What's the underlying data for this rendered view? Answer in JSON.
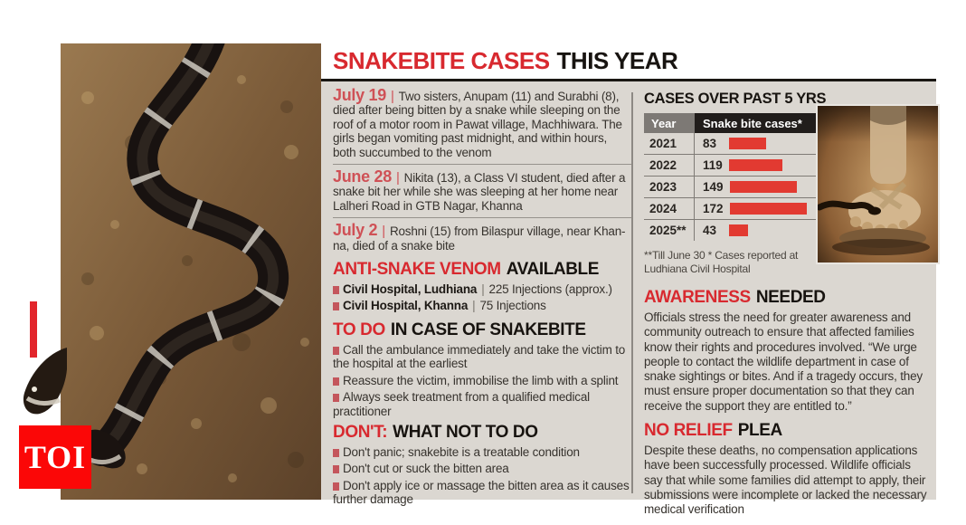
{
  "brand": {
    "logo_text": "TOI",
    "logo_color": "#fb0707"
  },
  "glyphs": {
    "pipe": "|"
  },
  "title": {
    "red": "SNAKEBITE CASES",
    "black": "THIS YEAR"
  },
  "incidents": [
    {
      "date": "July 19",
      "text": "Two sisters, Anupam (11) and Surabhi (8), died after being bitten by a snake while sleeping on the roof of a motor room in Pawat village, Machhiwara. The girls began vomiting past midnight, and within hours, both succumbed to the venom"
    },
    {
      "date": "June 28",
      "text": "Nikita (13), a Class VI student, died after a snake bit her while she was sleeping at her home near Lalheri Road in GTB Nagar, Khanna"
    },
    {
      "date": "July 2",
      "text": "Roshni (15) from Bilaspur village, near Khan-na, died of a snake bite"
    }
  ],
  "venom": {
    "heading_red": "ANTI-SNAKE VENOM",
    "heading_black": "AVAILABLE",
    "items": [
      {
        "name": "Civil Hospital, Ludhiana",
        "value": "225 Injections (approx.)"
      },
      {
        "name": "Civil Hospital, Khanna",
        "value": "75 Injections"
      }
    ]
  },
  "todo": {
    "heading_red": "TO DO",
    "heading_black": "IN CASE OF SNAKEBITE",
    "items": [
      "Call the ambulance immediately and take the victim to the hospital at the earliest",
      "Reassure the victim, immobilise the limb with a splint",
      "Always seek treatment from a qualified medical practitioner"
    ]
  },
  "dont": {
    "heading_red": "DON'T:",
    "heading_black": "WHAT NOT TO DO",
    "items": [
      "Don't panic; snakebite is a treatable condition",
      "Don't cut or suck the bitten area",
      "Don't apply ice or massage the bitten area as it causes further damage"
    ]
  },
  "chart_data": {
    "type": "bar",
    "title": "CASES OVER PAST 5 YRS",
    "columns": [
      "Year",
      "Snake bite cases*"
    ],
    "categories": [
      "2021",
      "2022",
      "2023",
      "2024",
      "2025**"
    ],
    "values": [
      83,
      119,
      149,
      172,
      43
    ],
    "footnote": "**Till June 30  * Cases reported at Ludhiana Civil Hospital",
    "bar_color": "#e23a31",
    "xlim": [
      0,
      172
    ],
    "legend": false
  },
  "awareness": {
    "heading_red": "AWARENESS",
    "heading_black": "NEEDED",
    "text": "Officials stress the need for greater awareness and community outreach to ensure that affected families know their rights and procedures involved. “We urge people to contact the wildlife department in case of snake sightings or bites. And if a tragedy occurs, they must ensure proper documentation so that they can receive the support they are entitled to.”"
  },
  "relief": {
    "heading_red": "NO RELIEF",
    "heading_black": "PLEA",
    "text": "Despite these deaths, no compensation applications have been successfully processed. Wildlife officials say that while some families did attempt to apply, their submissions were incomplete or lacked the necessary medical verification"
  }
}
